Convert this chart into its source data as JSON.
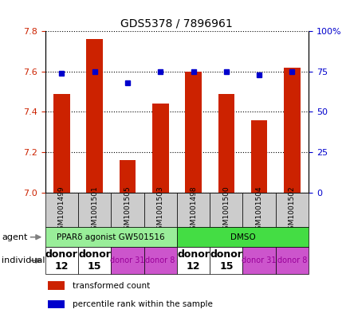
{
  "title": "GDS5378 / 7896961",
  "samples": [
    "GSM1001499",
    "GSM1001501",
    "GSM1001505",
    "GSM1001503",
    "GSM1001498",
    "GSM1001500",
    "GSM1001504",
    "GSM1001502"
  ],
  "transformed_counts": [
    7.49,
    7.76,
    7.16,
    7.44,
    7.6,
    7.49,
    7.36,
    7.62
  ],
  "percentile_ranks": [
    74,
    75,
    68,
    75,
    75,
    75,
    73,
    75
  ],
  "ylim_left": [
    7.0,
    7.8
  ],
  "ylim_right": [
    0,
    100
  ],
  "yticks_left": [
    7.0,
    7.2,
    7.4,
    7.6,
    7.8
  ],
  "yticks_right": [
    0,
    25,
    50,
    75,
    100
  ],
  "ytick_labels_right": [
    "0",
    "25",
    "50",
    "75",
    "100%"
  ],
  "bar_color": "#cc2200",
  "dot_color": "#0000cc",
  "agent_groups": [
    {
      "label": "PPARδ agonist GW501516",
      "start": 0,
      "end": 4,
      "color": "#99ee99"
    },
    {
      "label": "DMSO",
      "start": 4,
      "end": 8,
      "color": "#44dd44"
    }
  ],
  "individual_groups": [
    {
      "label": "donor\n12",
      "start": 0,
      "end": 1,
      "color": "#ffffff",
      "fontsize": 9,
      "bold": true
    },
    {
      "label": "donor\n15",
      "start": 1,
      "end": 2,
      "color": "#ffffff",
      "fontsize": 9,
      "bold": true
    },
    {
      "label": "donor 31",
      "start": 2,
      "end": 3,
      "color": "#dd66dd",
      "fontsize": 7,
      "bold": false
    },
    {
      "label": "donor 8",
      "start": 3,
      "end": 4,
      "color": "#dd66dd",
      "fontsize": 7,
      "bold": false
    },
    {
      "label": "donor\n12",
      "start": 4,
      "end": 5,
      "color": "#ffffff",
      "fontsize": 9,
      "bold": true
    },
    {
      "label": "donor\n15",
      "start": 5,
      "end": 6,
      "color": "#ffffff",
      "fontsize": 9,
      "bold": true
    },
    {
      "label": "donor 31",
      "start": 6,
      "end": 7,
      "color": "#dd66dd",
      "fontsize": 7,
      "bold": false
    },
    {
      "label": "donor 8",
      "start": 7,
      "end": 8,
      "color": "#dd66dd",
      "fontsize": 7,
      "bold": false
    }
  ],
  "legend_items": [
    {
      "color": "#cc2200",
      "label": "transformed count"
    },
    {
      "color": "#0000cc",
      "label": "percentile rank within the sample"
    }
  ],
  "grid_color": "#000000",
  "background_color": "#ffffff",
  "sample_bg_color": "#cccccc"
}
